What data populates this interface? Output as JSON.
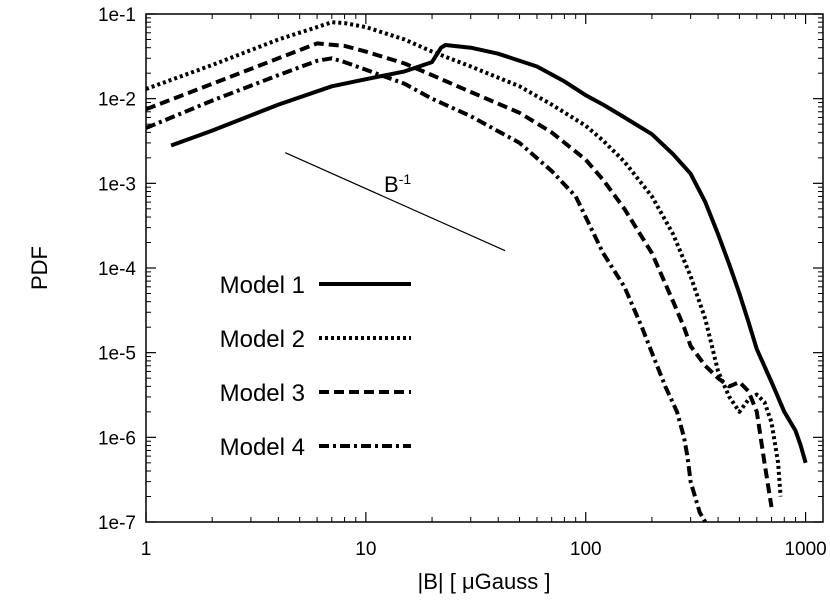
{
  "chart_data": {
    "type": "line",
    "xscale": "log",
    "yscale": "log",
    "xlim": [
      1,
      1200
    ],
    "ylim": [
      1e-07,
      0.1
    ],
    "xlabel": "|B| [ μGauss ]",
    "ylabel": "PDF",
    "xticks": [
      {
        "value": 1,
        "label": "1"
      },
      {
        "value": 10,
        "label": "10"
      },
      {
        "value": 100,
        "label": "100"
      },
      {
        "value": 1000,
        "label": "1000"
      }
    ],
    "yticks": [
      {
        "value": 0.1,
        "label": "1e-1"
      },
      {
        "value": 0.01,
        "label": "1e-2"
      },
      {
        "value": 0.001,
        "label": "1e-3"
      },
      {
        "value": 0.0001,
        "label": "1e-4"
      },
      {
        "value": 1e-05,
        "label": "1e-5"
      },
      {
        "value": 1e-06,
        "label": "1e-6"
      },
      {
        "value": 1e-07,
        "label": "1e-7"
      }
    ],
    "legend_placement": "lower-left",
    "series": [
      {
        "name": "Model 1",
        "style": "solid",
        "points": [
          [
            1.3,
            0.0028
          ],
          [
            2,
            0.0042
          ],
          [
            4,
            0.0085
          ],
          [
            7,
            0.014
          ],
          [
            10,
            0.017
          ],
          [
            15,
            0.021
          ],
          [
            20,
            0.027
          ],
          [
            22,
            0.04
          ],
          [
            23,
            0.043
          ],
          [
            30,
            0.04
          ],
          [
            40,
            0.034
          ],
          [
            60,
            0.024
          ],
          [
            80,
            0.016
          ],
          [
            100,
            0.011
          ],
          [
            120,
            0.0085
          ],
          [
            150,
            0.006
          ],
          [
            200,
            0.0038
          ],
          [
            250,
            0.0022
          ],
          [
            300,
            0.0013
          ],
          [
            350,
            0.0006
          ],
          [
            400,
            0.00025
          ],
          [
            450,
            0.00011
          ],
          [
            500,
            5e-05
          ],
          [
            550,
            2.3e-05
          ],
          [
            600,
            1.1e-05
          ],
          [
            700,
            4.5e-06
          ],
          [
            800,
            2e-06
          ],
          [
            900,
            1.2e-06
          ],
          [
            950,
            8e-07
          ],
          [
            1000,
            5e-07
          ]
        ]
      },
      {
        "name": "Model 2",
        "style": "dotted",
        "points": [
          [
            1,
            0.013
          ],
          [
            2,
            0.025
          ],
          [
            4,
            0.05
          ],
          [
            6,
            0.07
          ],
          [
            7,
            0.08
          ],
          [
            8,
            0.078
          ],
          [
            10,
            0.07
          ],
          [
            15,
            0.05
          ],
          [
            20,
            0.036
          ],
          [
            30,
            0.024
          ],
          [
            50,
            0.014
          ],
          [
            70,
            0.0085
          ],
          [
            100,
            0.0048
          ],
          [
            120,
            0.0032
          ],
          [
            150,
            0.0018
          ],
          [
            200,
            0.0007
          ],
          [
            250,
            0.00025
          ],
          [
            300,
            8e-05
          ],
          [
            350,
            2.5e-05
          ],
          [
            400,
            6e-06
          ],
          [
            450,
            3e-06
          ],
          [
            500,
            2e-06
          ],
          [
            550,
            2.8e-06
          ],
          [
            600,
            3.2e-06
          ],
          [
            650,
            2.6e-06
          ],
          [
            700,
            1.5e-06
          ],
          [
            750,
            5e-07
          ],
          [
            770,
            2e-07
          ]
        ]
      },
      {
        "name": "Model 3",
        "style": "dashed",
        "points": [
          [
            1,
            0.0075
          ],
          [
            2,
            0.015
          ],
          [
            4,
            0.03
          ],
          [
            6,
            0.045
          ],
          [
            8,
            0.042
          ],
          [
            10,
            0.036
          ],
          [
            15,
            0.026
          ],
          [
            20,
            0.019
          ],
          [
            30,
            0.012
          ],
          [
            50,
            0.0068
          ],
          [
            70,
            0.004
          ],
          [
            100,
            0.0019
          ],
          [
            120,
            0.0011
          ],
          [
            150,
            0.0005
          ],
          [
            200,
            0.00015
          ],
          [
            250,
            4e-05
          ],
          [
            280,
            2e-05
          ],
          [
            300,
            1.2e-05
          ],
          [
            350,
            7e-06
          ],
          [
            400,
            5e-06
          ],
          [
            450,
            4e-06
          ],
          [
            500,
            4.5e-06
          ],
          [
            550,
            3.5e-06
          ],
          [
            600,
            2e-06
          ],
          [
            650,
            5e-07
          ],
          [
            700,
            1.5e-07
          ]
        ]
      },
      {
        "name": "Model 4",
        "style": "dashdot",
        "points": [
          [
            1,
            0.0045
          ],
          [
            2,
            0.0095
          ],
          [
            4,
            0.019
          ],
          [
            6,
            0.028
          ],
          [
            7,
            0.03
          ],
          [
            8,
            0.027
          ],
          [
            10,
            0.022
          ],
          [
            15,
            0.015
          ],
          [
            20,
            0.01
          ],
          [
            30,
            0.0062
          ],
          [
            50,
            0.003
          ],
          [
            70,
            0.0014
          ],
          [
            90,
            0.0007
          ],
          [
            100,
            0.0004
          ],
          [
            120,
            0.00015
          ],
          [
            150,
            6e-05
          ],
          [
            180,
            2e-05
          ],
          [
            200,
            1e-05
          ],
          [
            230,
            4e-06
          ],
          [
            260,
            2e-06
          ],
          [
            280,
            1e-06
          ],
          [
            290,
            6e-07
          ],
          [
            300,
            3e-07
          ],
          [
            330,
            1.3e-07
          ],
          [
            350,
            1e-07
          ]
        ]
      }
    ],
    "annotations": [
      {
        "type": "reference-line",
        "label": "B",
        "superscript": "-1",
        "from": [
          4.3,
          0.0023
        ],
        "to": [
          43,
          0.00016
        ]
      }
    ]
  }
}
